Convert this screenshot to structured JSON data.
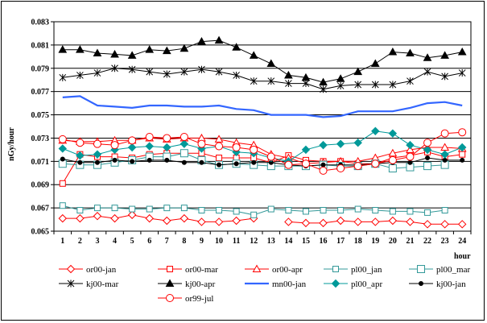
{
  "chart_data": {
    "type": "line",
    "title": "",
    "ylabel": "nGy/hour",
    "xlabel": "hour",
    "x": [
      1,
      2,
      3,
      4,
      5,
      6,
      7,
      8,
      9,
      10,
      11,
      12,
      13,
      14,
      15,
      16,
      17,
      18,
      19,
      20,
      21,
      22,
      23,
      24
    ],
    "ylim": [
      0.065,
      0.083
    ],
    "yticks": [
      "0.083",
      "0.081",
      "0.079",
      "0.077",
      "0.075",
      "0.073",
      "0.071",
      "0.069",
      "0.067",
      "0.065"
    ],
    "grid": true,
    "legend_position": "bottom",
    "series": [
      {
        "name": "or00-jan",
        "color": "#ff0000",
        "marker": "diamond",
        "fill": "none",
        "values": [
          0.0661,
          0.0661,
          0.0663,
          0.0661,
          0.0664,
          0.0661,
          0.0659,
          0.0661,
          0.0658,
          0.0658,
          0.0659,
          0.0661,
          null,
          0.0658,
          0.0657,
          0.0657,
          0.0659,
          0.0658,
          0.0658,
          0.0659,
          0.0658,
          0.0656,
          0.0656,
          0.0656
        ]
      },
      {
        "name": "or00-mar",
        "color": "#ff0000",
        "marker": "square",
        "fill": "none",
        "values": [
          0.0691,
          0.0716,
          0.0714,
          0.0714,
          0.0713,
          0.0716,
          0.0717,
          0.0717,
          0.0717,
          0.0713,
          0.0713,
          0.0713,
          0.0709,
          0.0715,
          0.0711,
          0.071,
          0.071,
          0.0708,
          0.0708,
          0.0713,
          0.0715,
          0.0718,
          0.0714,
          0.0716
        ]
      },
      {
        "name": "or00-apr",
        "color": "#ff0000",
        "marker": "triangle",
        "fill": "none",
        "values": [
          0.0728,
          0.0727,
          0.0727,
          0.0728,
          0.0728,
          0.073,
          0.0729,
          0.073,
          0.073,
          0.0729,
          0.0726,
          0.0724,
          0.0716,
          0.0713,
          0.0708,
          0.0709,
          0.071,
          0.071,
          0.0713,
          0.0717,
          0.072,
          0.0722,
          0.0722,
          0.0721
        ]
      },
      {
        "name": "pl00_jan",
        "color": "#339999",
        "marker": "square",
        "fill": "none",
        "values": [
          0.0672,
          0.0668,
          0.067,
          0.067,
          0.0669,
          0.0669,
          0.067,
          0.067,
          0.0668,
          0.0668,
          0.0667,
          0.0664,
          0.0669,
          0.0668,
          0.0667,
          0.0668,
          0.0668,
          0.0669,
          0.0668,
          0.0667,
          0.0667,
          0.0666,
          0.0668,
          null
        ]
      },
      {
        "name": "pl00_mar",
        "color": "#339999",
        "marker": "square-large",
        "fill": "none",
        "values": [
          0.0708,
          0.0707,
          0.0707,
          0.0709,
          0.0711,
          0.0714,
          0.0714,
          0.0717,
          0.0711,
          0.0707,
          0.0708,
          0.0707,
          0.0706,
          0.0706,
          0.0706,
          0.0707,
          0.0706,
          0.0706,
          0.0708,
          0.0704,
          0.0705,
          0.0706,
          0.0707,
          null
        ]
      },
      {
        "name": "kj00-jan",
        "color": "#000000",
        "marker": "dot",
        "fill": "#000000",
        "values": [
          0.0712,
          0.0709,
          0.0709,
          0.0711,
          0.071,
          0.0711,
          0.0711,
          0.0709,
          0.0709,
          0.0707,
          0.0708,
          0.0709,
          0.0709,
          0.0707,
          0.0706,
          0.0707,
          0.0707,
          0.0707,
          0.0708,
          0.0709,
          0.0709,
          0.0713,
          0.0711,
          0.0711
        ]
      },
      {
        "name": "kj00-mar",
        "color": "#000000",
        "marker": "star",
        "fill": "none",
        "values": [
          0.0782,
          0.0784,
          0.0786,
          0.079,
          0.0789,
          0.0787,
          0.0785,
          0.0787,
          0.0789,
          0.0787,
          0.0784,
          0.0779,
          0.0779,
          0.0777,
          0.0777,
          0.0772,
          0.0775,
          0.0776,
          0.0776,
          0.0776,
          0.0779,
          0.0787,
          0.0783,
          0.0786
        ]
      },
      {
        "name": "kj00-apr",
        "color": "#000000",
        "marker": "triangle",
        "fill": "#000000",
        "values": [
          0.0806,
          0.0806,
          0.0803,
          0.0802,
          0.0801,
          0.0806,
          0.0805,
          0.0807,
          0.0813,
          0.0814,
          0.0808,
          0.0801,
          0.0794,
          0.0784,
          0.0782,
          0.0778,
          0.0781,
          0.0787,
          0.0794,
          0.0804,
          0.0803,
          0.0799,
          0.0801,
          0.0804
        ]
      },
      {
        "name": "mn00-jan",
        "color": "#3366ff",
        "marker": "none",
        "fill": "none",
        "values": [
          0.0765,
          0.0766,
          0.0758,
          0.0757,
          0.0756,
          0.0758,
          0.0758,
          0.0757,
          0.0757,
          0.0758,
          0.0755,
          0.0754,
          0.075,
          0.075,
          0.075,
          0.0748,
          0.0749,
          0.0753,
          0.0753,
          0.0753,
          0.0756,
          0.076,
          0.0761,
          0.0758
        ]
      },
      {
        "name": "pl00_apr",
        "color": "#009999",
        "marker": "diamond",
        "fill": "#009999",
        "values": [
          0.0721,
          0.0715,
          0.0716,
          0.072,
          0.0722,
          0.0723,
          0.0722,
          0.0725,
          0.0721,
          0.0723,
          0.0718,
          0.0717,
          0.0713,
          0.071,
          0.072,
          0.0724,
          0.0725,
          0.0726,
          0.0736,
          0.0734,
          0.0724,
          0.072,
          0.0716,
          0.0722
        ]
      },
      {
        "name": "or99-jul",
        "color": "#ff0000",
        "marker": "circle",
        "fill": "none",
        "values": [
          0.0729,
          0.0726,
          0.0725,
          0.0724,
          0.0728,
          0.0731,
          0.073,
          0.0731,
          0.0725,
          0.0723,
          0.0722,
          0.072,
          0.0714,
          0.0707,
          0.0708,
          0.0702,
          0.0704,
          0.0706,
          0.0708,
          0.0711,
          0.0714,
          0.0726,
          0.0734,
          0.0735
        ]
      }
    ]
  }
}
